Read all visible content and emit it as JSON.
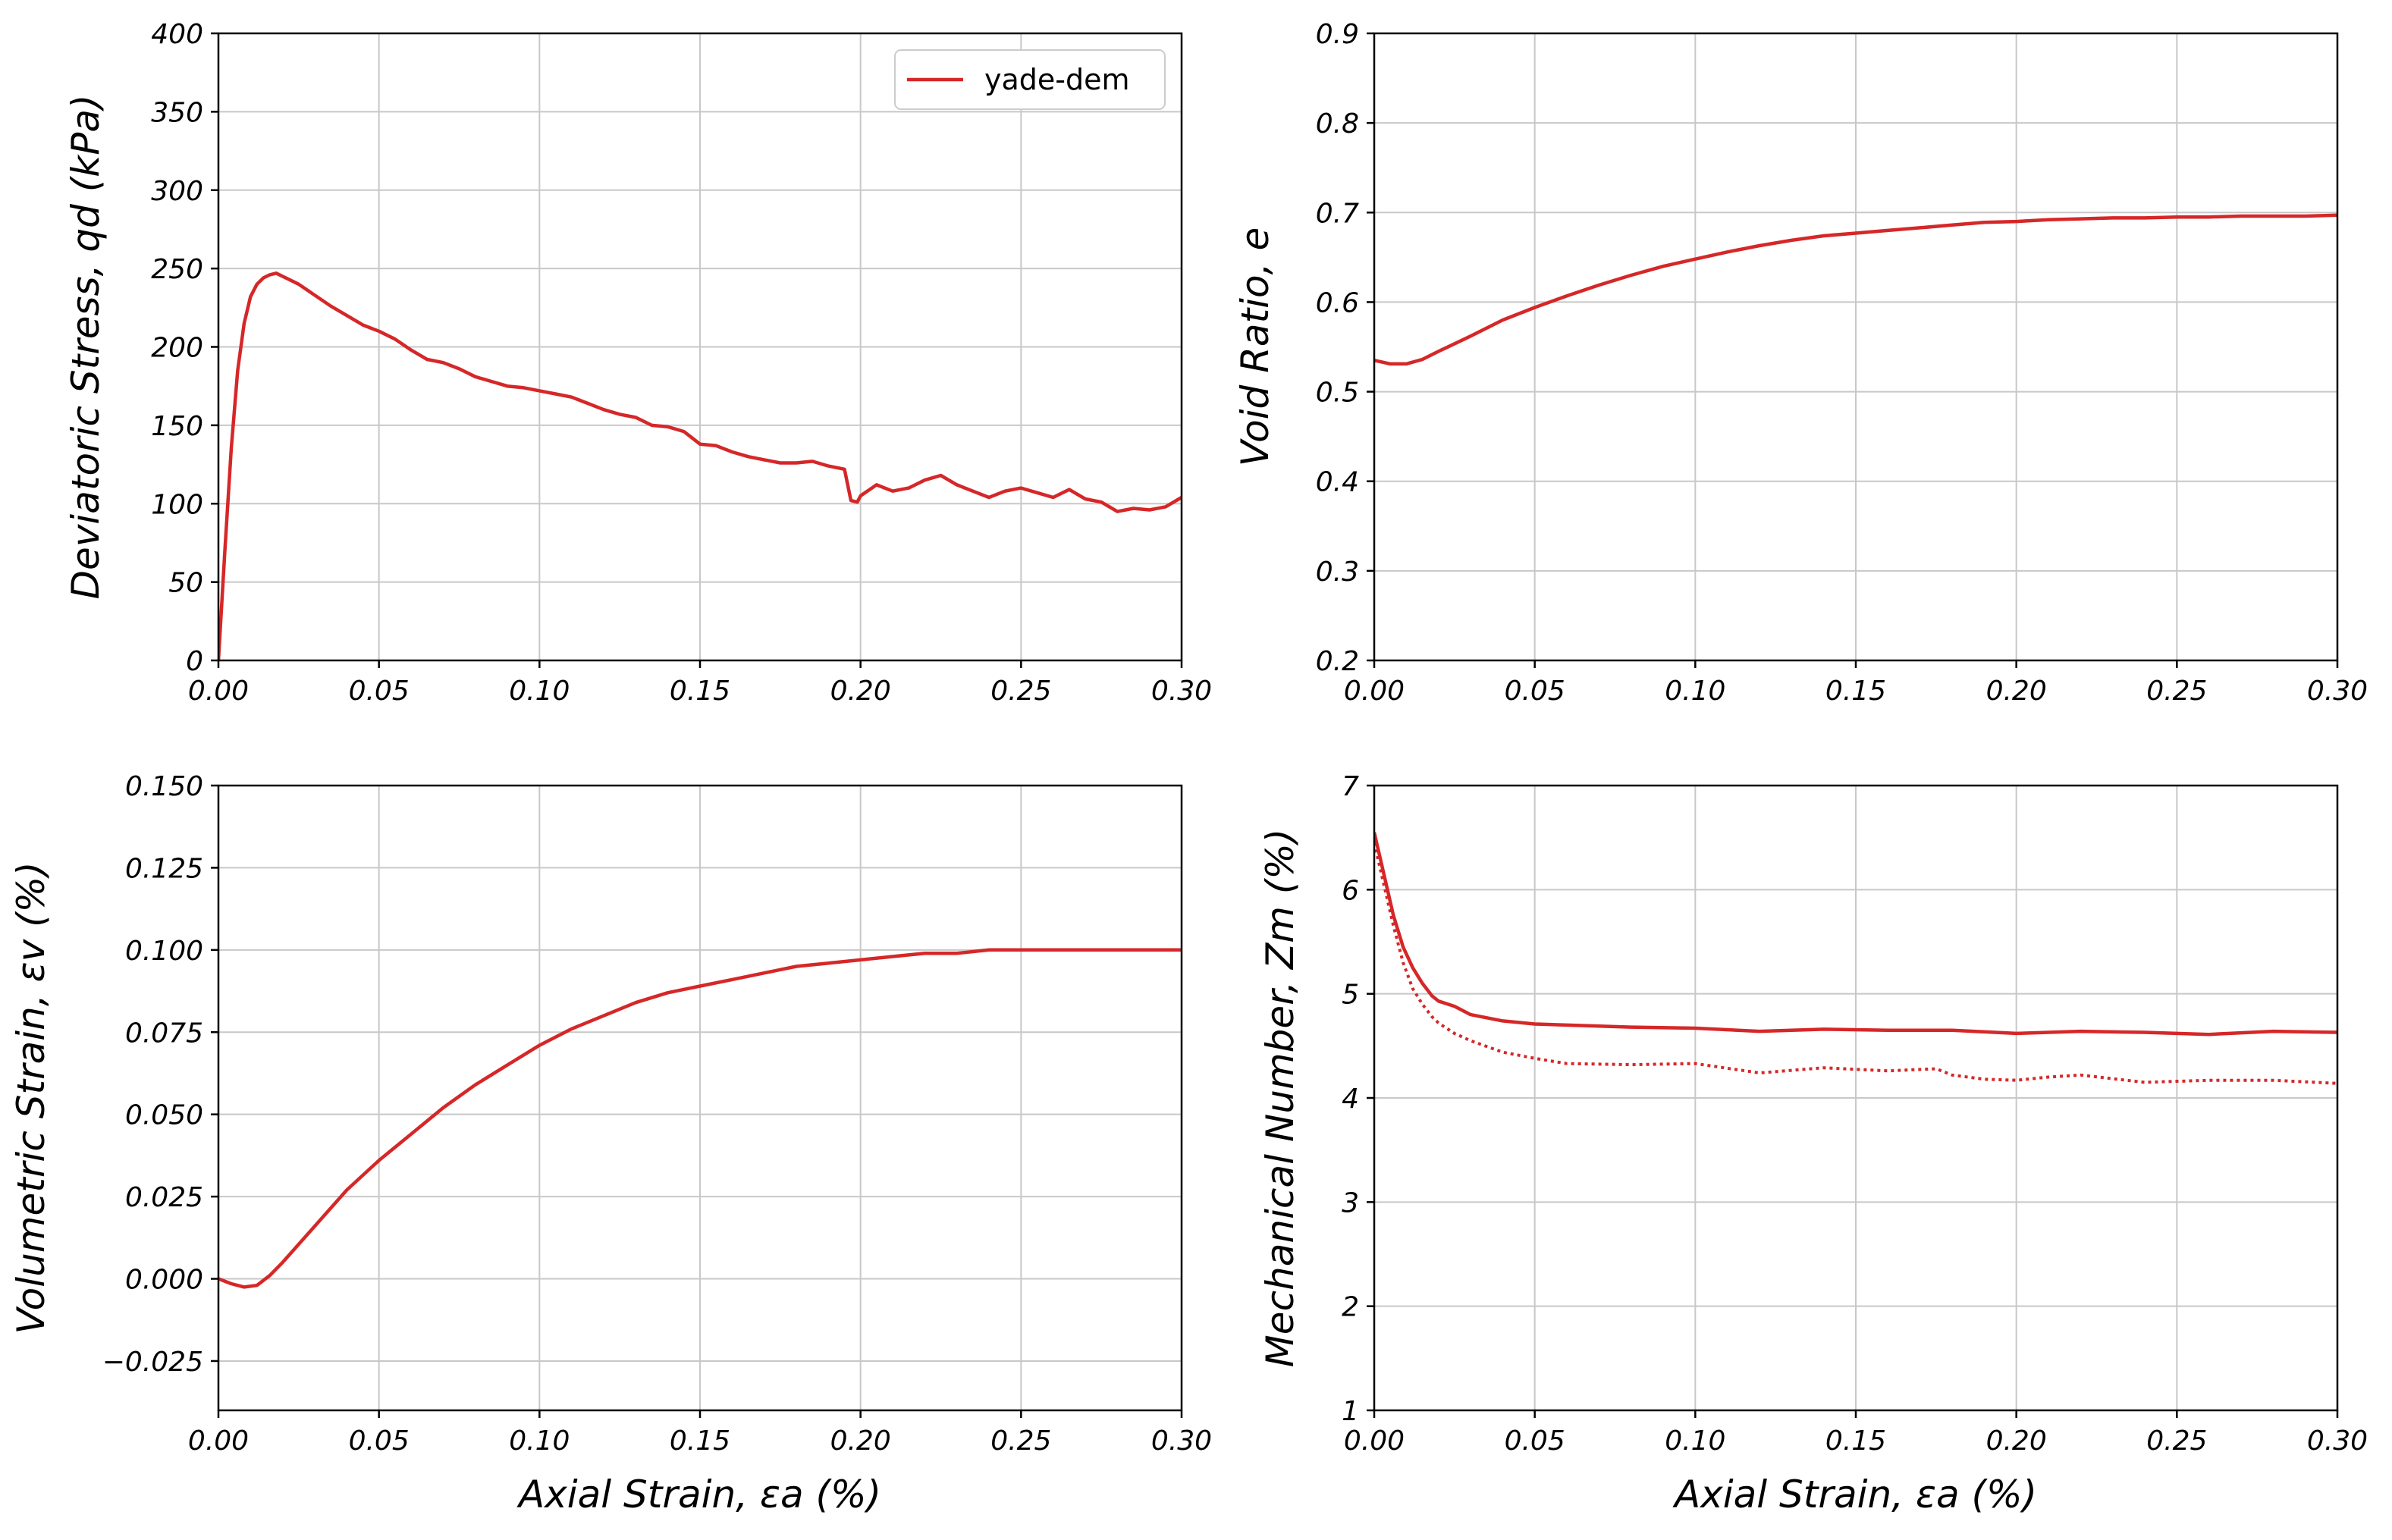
{
  "figure": {
    "series_color": "#d62728"
  },
  "chart_data": [
    {
      "id": "deviatoric",
      "type": "line",
      "title": "",
      "xlabel": "Axial Strain, εa (%)",
      "ylabel": "Deviatoric Stress, qd (kPa)",
      "xlabel_shown": false,
      "xlim": [
        0,
        0.3
      ],
      "ylim": [
        0,
        400
      ],
      "xticks": [
        0.0,
        0.05,
        0.1,
        0.15,
        0.2,
        0.25,
        0.3
      ],
      "xtick_labels": [
        "0.00",
        "0.05",
        "0.10",
        "0.15",
        "0.20",
        "0.25",
        "0.30"
      ],
      "yticks": [
        0,
        50,
        100,
        150,
        200,
        250,
        300,
        350,
        400
      ],
      "ytick_labels": [
        "0",
        "50",
        "100",
        "150",
        "200",
        "250",
        "300",
        "350",
        "400"
      ],
      "grid": true,
      "legend": {
        "position": "upper-right",
        "entries": [
          "yade-dem"
        ]
      },
      "series": [
        {
          "name": "yade-dem",
          "style": "solid",
          "x": [
            0,
            0.002,
            0.004,
            0.006,
            0.008,
            0.01,
            0.012,
            0.014,
            0.016,
            0.018,
            0.02,
            0.025,
            0.03,
            0.035,
            0.04,
            0.045,
            0.05,
            0.055,
            0.06,
            0.065,
            0.07,
            0.075,
            0.08,
            0.085,
            0.09,
            0.095,
            0.1,
            0.105,
            0.11,
            0.115,
            0.12,
            0.125,
            0.13,
            0.135,
            0.14,
            0.145,
            0.15,
            0.155,
            0.16,
            0.165,
            0.17,
            0.175,
            0.18,
            0.185,
            0.19,
            0.195,
            0.197,
            0.199,
            0.2,
            0.205,
            0.21,
            0.215,
            0.22,
            0.225,
            0.23,
            0.235,
            0.24,
            0.245,
            0.25,
            0.255,
            0.26,
            0.265,
            0.27,
            0.275,
            0.28,
            0.285,
            0.29,
            0.295,
            0.3
          ],
          "y": [
            0,
            70,
            135,
            185,
            215,
            232,
            240,
            244,
            246,
            247,
            245,
            240,
            233,
            226,
            220,
            214,
            210,
            205,
            198,
            192,
            190,
            186,
            181,
            178,
            175,
            174,
            172,
            170,
            168,
            164,
            160,
            157,
            155,
            150,
            149,
            146,
            138,
            137,
            133,
            130,
            128,
            126,
            126,
            127,
            124,
            122,
            102,
            101,
            105,
            112,
            108,
            110,
            115,
            118,
            112,
            108,
            104,
            108,
            110,
            107,
            104,
            109,
            103,
            101,
            95,
            97,
            96,
            98,
            104
          ]
        }
      ]
    },
    {
      "id": "void-ratio",
      "type": "line",
      "title": "",
      "xlabel": "",
      "ylabel": "Void Ratio, e",
      "xlim": [
        0,
        0.3
      ],
      "ylim": [
        0.2,
        0.9
      ],
      "xticks": [
        0.0,
        0.05,
        0.1,
        0.15,
        0.2,
        0.25,
        0.3
      ],
      "xtick_labels": [
        "0.00",
        "0.05",
        "0.10",
        "0.15",
        "0.20",
        "0.25",
        "0.30"
      ],
      "yticks": [
        0.2,
        0.3,
        0.4,
        0.5,
        0.6,
        0.7,
        0.8,
        0.9
      ],
      "ytick_labels": [
        "0.2",
        "0.3",
        "0.4",
        "0.5",
        "0.6",
        "0.7",
        "0.8",
        "0.9"
      ],
      "grid": true,
      "series": [
        {
          "style": "solid",
          "x": [
            0,
            0.005,
            0.01,
            0.015,
            0.02,
            0.03,
            0.04,
            0.05,
            0.06,
            0.07,
            0.08,
            0.09,
            0.1,
            0.11,
            0.12,
            0.13,
            0.14,
            0.15,
            0.16,
            0.17,
            0.18,
            0.19,
            0.2,
            0.21,
            0.22,
            0.23,
            0.24,
            0.25,
            0.26,
            0.27,
            0.28,
            0.29,
            0.3
          ],
          "y": [
            0.535,
            0.531,
            0.531,
            0.536,
            0.545,
            0.562,
            0.58,
            0.594,
            0.607,
            0.619,
            0.63,
            0.64,
            0.648,
            0.656,
            0.663,
            0.669,
            0.674,
            0.677,
            0.68,
            0.683,
            0.686,
            0.689,
            0.69,
            0.692,
            0.693,
            0.694,
            0.694,
            0.695,
            0.695,
            0.696,
            0.696,
            0.696,
            0.697
          ]
        }
      ]
    },
    {
      "id": "volumetric",
      "type": "line",
      "title": "",
      "xlabel": "Axial Strain, εa (%)",
      "ylabel": "Volumetric Strain, εv (%)",
      "xlim": [
        0,
        0.3
      ],
      "ylim": [
        -0.04,
        0.15
      ],
      "xticks": [
        0.0,
        0.05,
        0.1,
        0.15,
        0.2,
        0.25,
        0.3
      ],
      "xtick_labels": [
        "0.00",
        "0.05",
        "0.10",
        "0.15",
        "0.20",
        "0.25",
        "0.30"
      ],
      "yticks": [
        -0.025,
        0.0,
        0.025,
        0.05,
        0.075,
        0.1,
        0.125,
        0.15
      ],
      "ytick_labels": [
        "−0.025",
        "0.000",
        "0.025",
        "0.050",
        "0.075",
        "0.100",
        "0.125",
        "0.150"
      ],
      "grid": true,
      "series": [
        {
          "style": "solid",
          "x": [
            0,
            0.004,
            0.008,
            0.012,
            0.016,
            0.02,
            0.03,
            0.04,
            0.05,
            0.06,
            0.07,
            0.08,
            0.09,
            0.1,
            0.11,
            0.12,
            0.13,
            0.14,
            0.15,
            0.16,
            0.17,
            0.18,
            0.19,
            0.2,
            0.21,
            0.22,
            0.23,
            0.24,
            0.25,
            0.26,
            0.27,
            0.28,
            0.29,
            0.3
          ],
          "y": [
            0.0,
            -0.0015,
            -0.0025,
            -0.002,
            0.001,
            0.005,
            0.016,
            0.027,
            0.036,
            0.044,
            0.052,
            0.059,
            0.065,
            0.071,
            0.076,
            0.08,
            0.084,
            0.087,
            0.089,
            0.091,
            0.093,
            0.095,
            0.096,
            0.097,
            0.098,
            0.099,
            0.099,
            0.1,
            0.1,
            0.1,
            0.1,
            0.1,
            0.1,
            0.1
          ]
        }
      ]
    },
    {
      "id": "mechanical",
      "type": "line",
      "title": "",
      "xlabel": "Axial Strain, εa (%)",
      "ylabel": "Mechanical Number, Zm (%)",
      "xlim": [
        0,
        0.3
      ],
      "ylim": [
        1,
        7
      ],
      "xticks": [
        0.0,
        0.05,
        0.1,
        0.15,
        0.2,
        0.25,
        0.3
      ],
      "xtick_labels": [
        "0.00",
        "0.05",
        "0.10",
        "0.15",
        "0.20",
        "0.25",
        "0.30"
      ],
      "yticks": [
        1,
        2,
        3,
        4,
        5,
        6,
        7
      ],
      "ytick_labels": [
        "1",
        "2",
        "3",
        "4",
        "5",
        "6",
        "7"
      ],
      "grid": true,
      "series": [
        {
          "style": "solid",
          "x": [
            0,
            0.003,
            0.006,
            0.009,
            0.012,
            0.015,
            0.018,
            0.02,
            0.025,
            0.03,
            0.04,
            0.05,
            0.06,
            0.08,
            0.1,
            0.12,
            0.14,
            0.16,
            0.18,
            0.2,
            0.22,
            0.24,
            0.26,
            0.28,
            0.3
          ],
          "y": [
            6.55,
            6.15,
            5.75,
            5.45,
            5.25,
            5.1,
            4.98,
            4.93,
            4.88,
            4.8,
            4.74,
            4.71,
            4.7,
            4.68,
            4.67,
            4.64,
            4.66,
            4.65,
            4.65,
            4.62,
            4.64,
            4.63,
            4.61,
            4.64,
            4.63
          ]
        },
        {
          "style": "dotted",
          "x": [
            0,
            0.003,
            0.006,
            0.009,
            0.012,
            0.015,
            0.018,
            0.02,
            0.025,
            0.03,
            0.04,
            0.05,
            0.06,
            0.08,
            0.1,
            0.12,
            0.14,
            0.16,
            0.175,
            0.18,
            0.19,
            0.2,
            0.21,
            0.22,
            0.24,
            0.26,
            0.28,
            0.3
          ],
          "y": [
            6.45,
            6.05,
            5.65,
            5.3,
            5.05,
            4.9,
            4.78,
            4.72,
            4.62,
            4.55,
            4.44,
            4.38,
            4.33,
            4.32,
            4.33,
            4.24,
            4.29,
            4.26,
            4.28,
            4.22,
            4.18,
            4.17,
            4.2,
            4.22,
            4.15,
            4.17,
            4.17,
            4.14
          ]
        }
      ]
    }
  ]
}
